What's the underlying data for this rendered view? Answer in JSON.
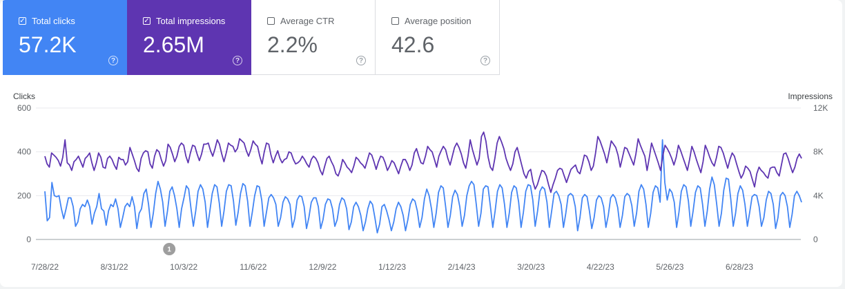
{
  "metrics": [
    {
      "label": "Total clicks",
      "value": "57.2K",
      "checked": true,
      "color": "#4285f4"
    },
    {
      "label": "Total impressions",
      "value": "2.65M",
      "checked": true,
      "color": "#5e35b1"
    },
    {
      "label": "Average CTR",
      "value": "2.2%",
      "checked": false
    },
    {
      "label": "Average position",
      "value": "42.6",
      "checked": false
    }
  ],
  "help_glyph": "?",
  "annotation": {
    "label": "1",
    "date": "9/26/22",
    "color": "#9e9e9e"
  },
  "chart_data": {
    "type": "line",
    "x_start": "7/28/22",
    "x_end": "7/28/23",
    "x_ticks": [
      "7/28/22",
      "8/31/22",
      "10/3/22",
      "11/6/22",
      "12/9/22",
      "1/12/23",
      "2/14/23",
      "3/20/23",
      "4/22/23",
      "5/26/23",
      "6/28/23"
    ],
    "y_left": {
      "label": "Clicks",
      "range": [
        0,
        600
      ],
      "ticks": [
        "0",
        "200",
        "400",
        "600"
      ]
    },
    "y_right": {
      "label": "Impressions",
      "range": [
        0,
        12000
      ],
      "ticks": [
        "0",
        "4K",
        "8K",
        "12K"
      ]
    },
    "grid": true,
    "legend": "none",
    "series": [
      {
        "name": "Clicks",
        "axis": "left",
        "color": "#4285f4",
        "values": [
          220,
          85,
          100,
          260,
          200,
          195,
          200,
          140,
          95,
          140,
          190,
          190,
          150,
          60,
          80,
          140,
          160,
          150,
          180,
          150,
          70,
          120,
          150,
          210,
          140,
          130,
          65,
          130,
          160,
          150,
          185,
          140,
          55,
          100,
          150,
          165,
          150,
          195,
          150,
          50,
          120,
          140,
          210,
          230,
          160,
          55,
          120,
          210,
          265,
          230,
          170,
          60,
          130,
          220,
          240,
          200,
          140,
          55,
          140,
          190,
          245,
          230,
          140,
          60,
          130,
          220,
          250,
          230,
          170,
          55,
          130,
          210,
          250,
          240,
          165,
          60,
          130,
          220,
          250,
          245,
          175,
          65,
          125,
          210,
          255,
          245,
          175,
          60,
          125,
          200,
          245,
          240,
          180,
          60,
          125,
          190,
          205,
          190,
          160,
          60,
          100,
          170,
          195,
          185,
          160,
          55,
          95,
          180,
          200,
          195,
          150,
          50,
          100,
          170,
          190,
          190,
          150,
          50,
          90,
          160,
          185,
          180,
          140,
          60,
          90,
          160,
          190,
          180,
          140,
          45,
          80,
          150,
          170,
          150,
          110,
          40,
          80,
          140,
          175,
          160,
          100,
          30,
          70,
          150,
          160,
          130,
          90,
          40,
          80,
          140,
          170,
          150,
          110,
          40,
          90,
          160,
          185,
          175,
          130,
          55,
          100,
          185,
          230,
          200,
          140,
          55,
          120,
          215,
          245,
          235,
          150,
          55,
          110,
          195,
          225,
          205,
          150,
          60,
          110,
          200,
          245,
          265,
          250,
          160,
          60,
          120,
          230,
          245,
          240,
          150,
          55,
          130,
          220,
          250,
          235,
          160,
          55,
          120,
          215,
          245,
          235,
          170,
          55,
          125,
          220,
          250,
          245,
          180,
          60,
          130,
          220,
          240,
          230,
          170,
          55,
          130,
          210,
          220,
          200,
          160,
          55,
          120,
          200,
          210,
          200,
          150,
          40,
          100,
          190,
          205,
          195,
          130,
          50,
          100,
          180,
          200,
          190,
          150,
          55,
          110,
          190,
          205,
          190,
          145,
          55,
          110,
          195,
          210,
          200,
          155,
          60,
          120,
          220,
          250,
          230,
          160,
          55,
          120,
          215,
          245,
          235,
          170,
          455,
          260,
          180,
          230,
          215,
          170,
          55,
          125,
          220,
          250,
          240,
          175,
          60,
          130,
          215,
          245,
          235,
          160,
          60,
          130,
          230,
          285,
          250,
          160,
          60,
          120,
          225,
          280,
          275,
          180,
          60,
          120,
          210,
          245,
          225,
          160,
          60,
          125,
          195,
          205,
          200,
          150,
          60,
          100,
          180,
          220,
          210,
          160,
          50,
          100,
          200,
          215,
          200,
          150,
          55,
          115,
          200,
          220,
          200,
          170
        ]
      },
      {
        "name": "Impressions",
        "axis": "right",
        "color": "#5e35b1",
        "values": [
          7600,
          6900,
          6600,
          7900,
          7700,
          7500,
          7200,
          6700,
          7500,
          9100,
          7000,
          6800,
          6300,
          7100,
          7300,
          7600,
          7100,
          6600,
          7400,
          7600,
          7900,
          7000,
          6300,
          7000,
          7900,
          7500,
          6600,
          6500,
          7400,
          7600,
          7300,
          6800,
          6400,
          7500,
          7300,
          7300,
          6800,
          7100,
          8400,
          7800,
          7200,
          6500,
          6200,
          7400,
          7900,
          8100,
          8000,
          6900,
          6500,
          7600,
          8200,
          8000,
          7300,
          6700,
          7200,
          8700,
          8400,
          7800,
          7100,
          7600,
          8500,
          8800,
          8600,
          7600,
          7000,
          7900,
          8600,
          8500,
          7800,
          7200,
          7800,
          8700,
          8700,
          8800,
          8100,
          7600,
          8300,
          9100,
          8700,
          7800,
          7100,
          7900,
          8800,
          8600,
          8500,
          8000,
          8300,
          9200,
          9000,
          8800,
          8100,
          7600,
          8200,
          9000,
          8700,
          8500,
          7600,
          6900,
          8000,
          8800,
          8700,
          7700,
          7000,
          7600,
          8100,
          7400,
          7000,
          7300,
          7400,
          8000,
          7900,
          7300,
          6900,
          7000,
          7200,
          7600,
          7300,
          6900,
          6600,
          7300,
          7600,
          7400,
          7000,
          6300,
          5900,
          6700,
          7400,
          7600,
          7100,
          6700,
          6000,
          5800,
          6400,
          7300,
          7000,
          6600,
          6400,
          6100,
          6700,
          7500,
          7300,
          7000,
          6800,
          6500,
          7200,
          7900,
          7700,
          7100,
          6400,
          7100,
          7600,
          7500,
          7000,
          6300,
          6700,
          7200,
          7000,
          6500,
          6000,
          6700,
          7300,
          7300,
          6900,
          6300,
          6800,
          7900,
          8300,
          7600,
          7000,
          6900,
          7600,
          8500,
          8200,
          8000,
          7300,
          6600,
          7600,
          8100,
          8500,
          8200,
          7400,
          6800,
          7600,
          8400,
          8800,
          8400,
          7800,
          7000,
          6500,
          7600,
          9100,
          8200,
          7500,
          6800,
          7400,
          9400,
          9800,
          9000,
          7500,
          6600,
          6300,
          7400,
          8800,
          9400,
          8900,
          8300,
          7400,
          6800,
          6300,
          6900,
          8000,
          8400,
          7600,
          6800,
          6000,
          5600,
          6200,
          6400,
          5300,
          4600,
          5000,
          5700,
          6300,
          6200,
          5800,
          5000,
          4300,
          5000,
          5600,
          6300,
          6500,
          6400,
          5800,
          5200,
          5800,
          6400,
          6600,
          6800,
          6200,
          6000,
          6800,
          7700,
          7600,
          7100,
          6300,
          6700,
          7900,
          9400,
          9000,
          8400,
          7800,
          7000,
          8000,
          9000,
          8700,
          8400,
          7700,
          6600,
          7500,
          8400,
          8300,
          7800,
          7300,
          6800,
          7800,
          9200,
          8600,
          8100,
          7600,
          6300,
          7500,
          8800,
          8200,
          7600,
          7000,
          6300,
          7600,
          8600,
          8300,
          7900,
          7400,
          6800,
          7500,
          8600,
          8100,
          7500,
          6900,
          6300,
          7300,
          8500,
          8000,
          7300,
          6700,
          6100,
          7100,
          8600,
          8100,
          7500,
          7000,
          6700,
          7500,
          8500,
          8400,
          7900,
          7200,
          6500,
          7300,
          7900,
          7600,
          6900,
          6200,
          5600,
          6000,
          6700,
          6500,
          6200,
          5500,
          4800,
          6000,
          6600,
          6300,
          6100,
          5800,
          5600,
          6500,
          6600,
          6600,
          6100,
          5800,
          6800,
          7800,
          7900,
          7400,
          6700,
          6100,
          6600,
          7400,
          7800,
          7400
        ]
      }
    ]
  }
}
